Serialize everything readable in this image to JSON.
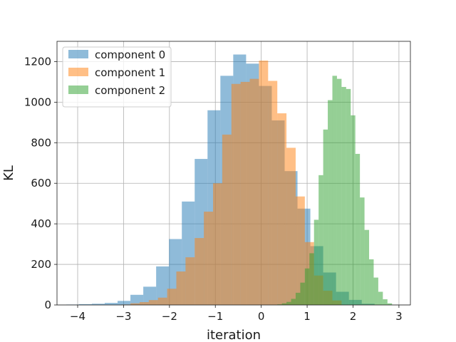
{
  "chart_data": {
    "type": "bar",
    "title": "",
    "xlabel": "iteration",
    "ylabel": "KL",
    "xlim": [
      -4.45,
      3.25
    ],
    "ylim": [
      0,
      1300
    ],
    "xticks": [
      -4,
      -3,
      -2,
      -1,
      0,
      1,
      2,
      3
    ],
    "xtick_labels": [
      "−4",
      "−3",
      "−2",
      "−1",
      "0",
      "1",
      "2",
      "3"
    ],
    "yticks": [
      0,
      200,
      400,
      600,
      800,
      1000,
      1200
    ],
    "ytick_labels": [
      "0",
      "200",
      "400",
      "600",
      "800",
      "1000",
      "1200"
    ],
    "grid": true,
    "legend_position": "top-left",
    "series": [
      {
        "name": "component 0",
        "color": "#1f77b4",
        "bin_edges": [
          -4.25,
          -3.97,
          -3.69,
          -3.41,
          -3.13,
          -2.85,
          -2.57,
          -2.29,
          -2.01,
          -1.73,
          -1.45,
          -1.17,
          -0.89,
          -0.61,
          -0.33,
          -0.05,
          0.23,
          0.51,
          0.79,
          1.07,
          1.35,
          1.63,
          1.91,
          2.19,
          2.47
        ],
        "counts": [
          2,
          4,
          6,
          10,
          20,
          50,
          90,
          190,
          325,
          510,
          720,
          960,
          1130,
          1235,
          1190,
          1080,
          910,
          660,
          475,
          290,
          160,
          65,
          25,
          6
        ]
      },
      {
        "name": "component 1",
        "color": "#ff7f0e",
        "bin_edges": [
          -3.05,
          -2.85,
          -2.65,
          -2.45,
          -2.25,
          -2.05,
          -1.85,
          -1.65,
          -1.45,
          -1.25,
          -1.05,
          -0.85,
          -0.65,
          -0.45,
          -0.25,
          -0.05,
          0.15,
          0.35,
          0.55,
          0.75,
          0.95,
          1.15,
          1.35,
          1.55,
          1.75
        ],
        "counts": [
          2,
          8,
          14,
          24,
          36,
          80,
          165,
          235,
          330,
          460,
          600,
          840,
          1090,
          1100,
          1115,
          1205,
          1105,
          945,
          775,
          535,
          310,
          145,
          70,
          22
        ]
      },
      {
        "name": "component 2",
        "color": "#2ca02c",
        "bin_edges": [
          0.35,
          0.45,
          0.55,
          0.65,
          0.75,
          0.85,
          0.95,
          1.05,
          1.15,
          1.25,
          1.35,
          1.45,
          1.55,
          1.65,
          1.75,
          1.85,
          1.95,
          2.05,
          2.15,
          2.25,
          2.35,
          2.45,
          2.55,
          2.65,
          2.75,
          2.85
        ],
        "counts": [
          3,
          8,
          15,
          30,
          60,
          110,
          180,
          255,
          420,
          640,
          865,
          1010,
          1130,
          1115,
          1075,
          1065,
          935,
          745,
          530,
          370,
          225,
          135,
          65,
          28,
          8
        ]
      }
    ]
  }
}
